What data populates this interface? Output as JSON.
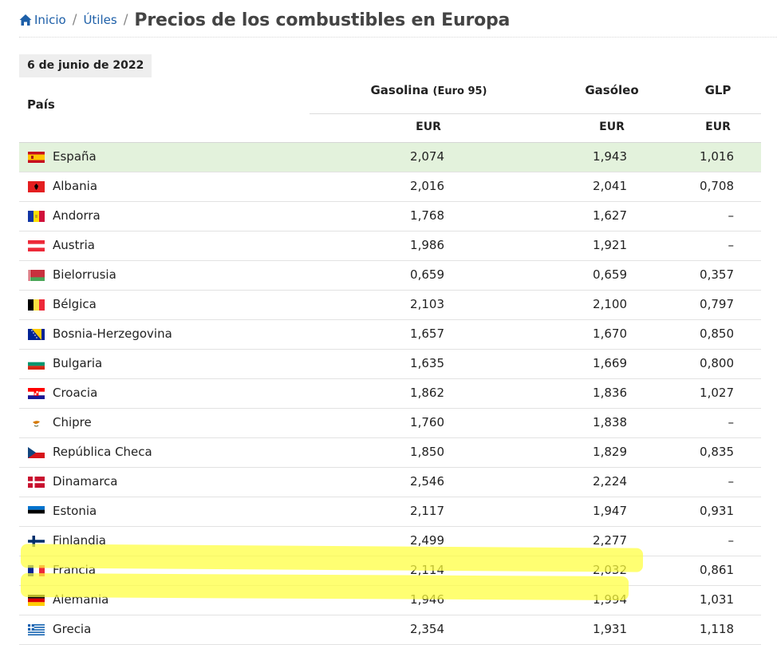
{
  "breadcrumb": {
    "home": "Inicio",
    "section": "Útiles",
    "title": "Precios de los combustibles en Europa"
  },
  "table": {
    "date": "6 de junio de 2022",
    "col_country": "País",
    "col_gasoline": "Gasolina",
    "col_gasoline_note": "(Euro 95)",
    "col_diesel": "Gasóleo",
    "col_glp": "GLP",
    "unit": "EUR",
    "rows": [
      {
        "name": "España",
        "gasolina": "2,074",
        "gasoleo": "1,943",
        "glp": "1,016",
        "flag": "es"
      },
      {
        "name": "Albania",
        "gasolina": "2,016",
        "gasoleo": "2,041",
        "glp": "0,708",
        "flag": "al"
      },
      {
        "name": "Andorra",
        "gasolina": "1,768",
        "gasoleo": "1,627",
        "glp": "–",
        "flag": "ad"
      },
      {
        "name": "Austria",
        "gasolina": "1,986",
        "gasoleo": "1,921",
        "glp": "–",
        "flag": "at"
      },
      {
        "name": "Bielorrusia",
        "gasolina": "0,659",
        "gasoleo": "0,659",
        "glp": "0,357",
        "flag": "by"
      },
      {
        "name": "Bélgica",
        "gasolina": "2,103",
        "gasoleo": "2,100",
        "glp": "0,797",
        "flag": "be"
      },
      {
        "name": "Bosnia-Herzegovina",
        "gasolina": "1,657",
        "gasoleo": "1,670",
        "glp": "0,850",
        "flag": "ba"
      },
      {
        "name": "Bulgaria",
        "gasolina": "1,635",
        "gasoleo": "1,669",
        "glp": "0,800",
        "flag": "bg"
      },
      {
        "name": "Croacia",
        "gasolina": "1,862",
        "gasoleo": "1,836",
        "glp": "1,027",
        "flag": "hr"
      },
      {
        "name": "Chipre",
        "gasolina": "1,760",
        "gasoleo": "1,838",
        "glp": "–",
        "flag": "cy"
      },
      {
        "name": "República Checa",
        "gasolina": "1,850",
        "gasoleo": "1,829",
        "glp": "0,835",
        "flag": "cz"
      },
      {
        "name": "Dinamarca",
        "gasolina": "2,546",
        "gasoleo": "2,224",
        "glp": "–",
        "flag": "dk"
      },
      {
        "name": "Estonia",
        "gasolina": "2,117",
        "gasoleo": "1,947",
        "glp": "0,931",
        "flag": "ee"
      },
      {
        "name": "Finlandia",
        "gasolina": "2,499",
        "gasoleo": "2,277",
        "glp": "–",
        "flag": "fi"
      },
      {
        "name": "Francia",
        "gasolina": "2,114",
        "gasoleo": "2,032",
        "glp": "0,861",
        "flag": "fr"
      },
      {
        "name": "Alemania",
        "gasolina": "1,946",
        "gasoleo": "1,994",
        "glp": "1,031",
        "flag": "de"
      },
      {
        "name": "Grecia",
        "gasolina": "2,354",
        "gasoleo": "1,931",
        "glp": "1,118",
        "flag": "gr"
      }
    ]
  },
  "colors": {
    "link": "#1d5fa8",
    "spain_row": "#e3f2dc",
    "highlighter": "#ffff3c"
  }
}
